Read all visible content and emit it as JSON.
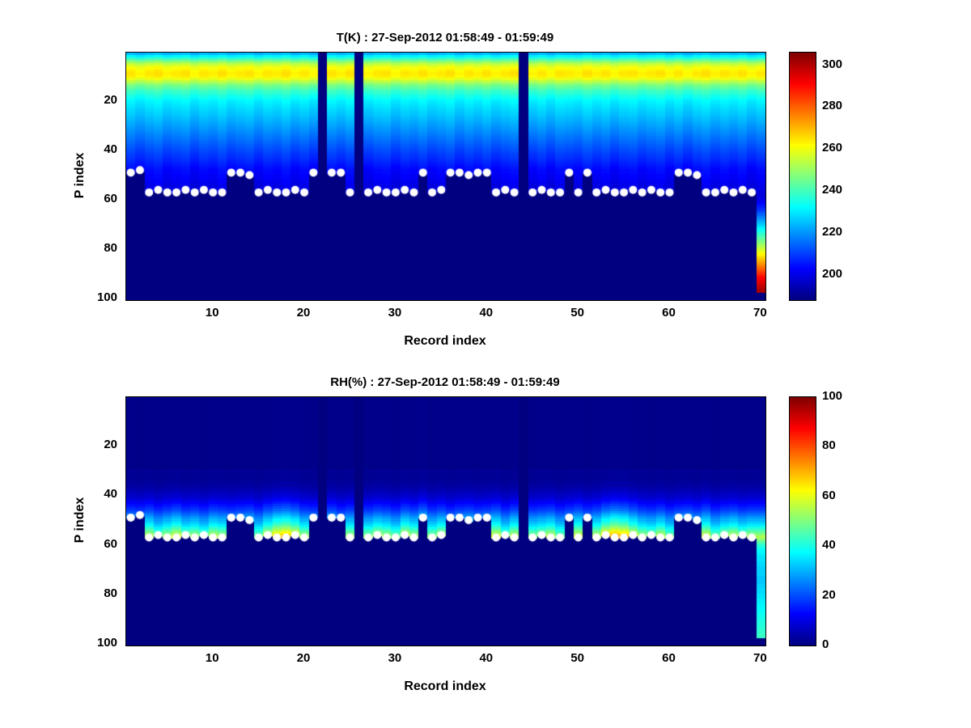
{
  "figure": {
    "background": "#ffffff",
    "dot_color": "#ffffff",
    "nodata_color": "#00008a"
  },
  "chart_data": [
    {
      "type": "heatmap",
      "title": "T(K) : 27-Sep-2012 01:58:49 - 01:59:49",
      "xlabel": "Record index",
      "ylabel": "P index",
      "x_ticks": [
        10,
        20,
        30,
        40,
        50,
        60,
        70
      ],
      "y_ticks": [
        20,
        40,
        60,
        80,
        100
      ],
      "x_range": [
        1,
        70
      ],
      "y_range": [
        1,
        100
      ],
      "y_reversed": true,
      "colormap": "jet",
      "caxis": [
        188,
        306
      ],
      "colorbar_ticks": [
        200,
        220,
        240,
        260,
        280,
        300
      ],
      "n_records": 70,
      "n_levels": 100,
      "offset_mode": "add",
      "missing_records": [
        22,
        26,
        44
      ],
      "profile": [
        224,
        231,
        238,
        246,
        253,
        258,
        261,
        263,
        264,
        263,
        259,
        254,
        249,
        245,
        242,
        239,
        237,
        235,
        233,
        231,
        230,
        229,
        228,
        227,
        226,
        225,
        224,
        223,
        222,
        221,
        220,
        219,
        218,
        217,
        216,
        215,
        214,
        213,
        212,
        211,
        210,
        209,
        208,
        207,
        206,
        205,
        204,
        203,
        203,
        202,
        202,
        201,
        201,
        200,
        200,
        199,
        199,
        198,
        199,
        200,
        202,
        204,
        206,
        208,
        211,
        214,
        217,
        220,
        223,
        226,
        229,
        232,
        235,
        238,
        241,
        244,
        247,
        250,
        253,
        256,
        259,
        262,
        265,
        268,
        271,
        274,
        277,
        280,
        283,
        286,
        289,
        292,
        294,
        296,
        298,
        300,
        301,
        302,
        302,
        302
      ],
      "record_offsets": [
        0.8,
        -1.2,
        0.5,
        1.6,
        -0.8,
        0.3,
        1.2,
        -1.5,
        0.6,
        -0.4,
        1.4,
        -0.9,
        0.2,
        1.1,
        -1.3,
        0.7,
        -0.2,
        1.5,
        -1.0,
        0.4,
        -1.6,
        0,
        0.9,
        -0.6,
        1.3,
        0,
        -1.1,
        0.5,
        1.0,
        -1.4,
        0.6,
        -0.3,
        1.2,
        -0.8,
        0.3,
        1.5,
        -1.2,
        0.7,
        -0.5,
        1.1,
        -0.9,
        0.4,
        1.3,
        0,
        -1.0,
        0.6,
        -1.5,
        0.8,
        0.2,
        -0.7,
        1.4,
        -0.4,
        0.9,
        -1.3,
        0.5,
        1.0,
        -0.8,
        0.3,
        1.2,
        -1.1,
        0.7,
        -1.6,
        0.4,
        1.5,
        -0.6,
        0.9,
        -0.3,
        1.1,
        -1.2,
        0.5
      ],
      "surface_level": [
        49,
        48,
        57,
        56,
        57,
        57,
        56,
        57,
        56,
        57,
        57,
        49,
        49,
        50,
        57,
        56,
        57,
        57,
        56,
        57,
        49,
        null,
        49,
        49,
        57,
        null,
        57,
        56,
        57,
        57,
        56,
        57,
        49,
        57,
        56,
        49,
        49,
        50,
        49,
        49,
        57,
        56,
        57,
        null,
        57,
        56,
        57,
        57,
        49,
        57,
        49,
        57,
        56,
        57,
        57,
        56,
        57,
        56,
        57,
        57,
        49,
        49,
        50,
        57,
        57,
        56,
        57,
        56,
        57,
        97
      ],
      "marker_levels": [
        49,
        48,
        57,
        56,
        57,
        57,
        56,
        57,
        56,
        57,
        57,
        49,
        49,
        50,
        57,
        56,
        57,
        57,
        56,
        57,
        49,
        null,
        49,
        49,
        57,
        null,
        57,
        56,
        57,
        57,
        56,
        57,
        49,
        57,
        56,
        49,
        49,
        50,
        49,
        49,
        57,
        56,
        57,
        null,
        57,
        56,
        57,
        57,
        49,
        57,
        49,
        57,
        56,
        57,
        57,
        56,
        57,
        56,
        57,
        57,
        49,
        49,
        50,
        57,
        57,
        56,
        57,
        56,
        57,
        null
      ]
    },
    {
      "type": "heatmap",
      "title": "RH(%) : 27-Sep-2012 01:58:49 - 01:59:49",
      "xlabel": "Record index",
      "ylabel": "P index",
      "x_ticks": [
        10,
        20,
        30,
        40,
        50,
        60,
        70
      ],
      "y_ticks": [
        20,
        40,
        60,
        80,
        100
      ],
      "x_range": [
        1,
        70
      ],
      "y_range": [
        1,
        100
      ],
      "y_reversed": true,
      "colormap": "jet",
      "caxis": [
        0,
        100
      ],
      "colorbar_ticks": [
        0,
        20,
        40,
        60,
        80,
        100
      ],
      "n_records": 70,
      "n_levels": 100,
      "offset_mode": "scale",
      "missing_records": [
        22,
        26,
        44
      ],
      "profile": [
        1,
        1,
        1,
        1,
        1,
        1,
        1,
        1,
        1,
        1,
        1,
        1,
        1,
        1,
        1,
        1,
        1,
        1,
        1,
        1,
        1,
        1,
        1,
        1,
        1,
        1,
        1,
        1,
        1,
        2,
        2,
        2,
        2,
        2,
        3,
        3,
        4,
        5,
        6,
        7,
        8,
        10,
        12,
        14,
        16,
        18,
        21,
        24,
        27,
        30,
        33,
        36,
        40,
        44,
        48,
        52,
        55,
        50,
        46,
        42,
        40,
        38,
        37,
        36,
        35,
        35,
        34,
        34,
        33,
        33,
        33,
        33,
        32,
        32,
        32,
        33,
        33,
        34,
        34,
        35,
        35,
        36,
        36,
        37,
        37,
        38,
        38,
        39,
        39,
        40,
        40,
        41,
        41,
        42,
        42,
        43,
        43,
        44,
        44,
        44
      ],
      "record_offsets": [
        1.0,
        0.95,
        1.05,
        0.9,
        1.0,
        1.1,
        0.95,
        1.0,
        0.9,
        1.05,
        1.0,
        0.95,
        1.0,
        1.05,
        0.9,
        1.1,
        1.25,
        1.3,
        1.2,
        1.0,
        0.95,
        1.0,
        1.05,
        0.9,
        1.0,
        1.0,
        0.95,
        1.05,
        1.0,
        0.9,
        1.1,
        1.0,
        1.2,
        0.95,
        1.05,
        0.9,
        1.0,
        1.05,
        0.95,
        1.0,
        1.1,
        0.9,
        1.05,
        1.0,
        0.95,
        1.0,
        1.05,
        0.9,
        1.0,
        1.1,
        0.95,
        1.05,
        1.25,
        1.35,
        1.3,
        1.15,
        1.0,
        0.95,
        1.05,
        0.9,
        1.0,
        1.05,
        0.95,
        1.1,
        0.9,
        1.0,
        1.05,
        0.95,
        1.0,
        1.0
      ],
      "surface_level": [
        49,
        48,
        57,
        56,
        57,
        57,
        56,
        57,
        56,
        57,
        57,
        49,
        49,
        50,
        57,
        56,
        57,
        57,
        56,
        57,
        49,
        null,
        49,
        49,
        57,
        null,
        57,
        56,
        57,
        57,
        56,
        57,
        49,
        57,
        56,
        49,
        49,
        50,
        49,
        49,
        57,
        56,
        57,
        null,
        57,
        56,
        57,
        57,
        49,
        57,
        49,
        57,
        56,
        57,
        57,
        56,
        57,
        56,
        57,
        57,
        49,
        49,
        50,
        57,
        57,
        56,
        57,
        56,
        57,
        97
      ],
      "marker_levels": [
        49,
        48,
        57,
        56,
        57,
        57,
        56,
        57,
        56,
        57,
        57,
        49,
        49,
        50,
        57,
        56,
        57,
        57,
        56,
        57,
        49,
        null,
        49,
        49,
        57,
        null,
        57,
        56,
        57,
        57,
        56,
        57,
        49,
        57,
        56,
        49,
        49,
        50,
        49,
        49,
        57,
        56,
        57,
        null,
        57,
        56,
        57,
        57,
        49,
        57,
        49,
        57,
        56,
        57,
        57,
        56,
        57,
        56,
        57,
        57,
        49,
        49,
        50,
        57,
        57,
        56,
        57,
        56,
        57,
        null
      ]
    }
  ]
}
